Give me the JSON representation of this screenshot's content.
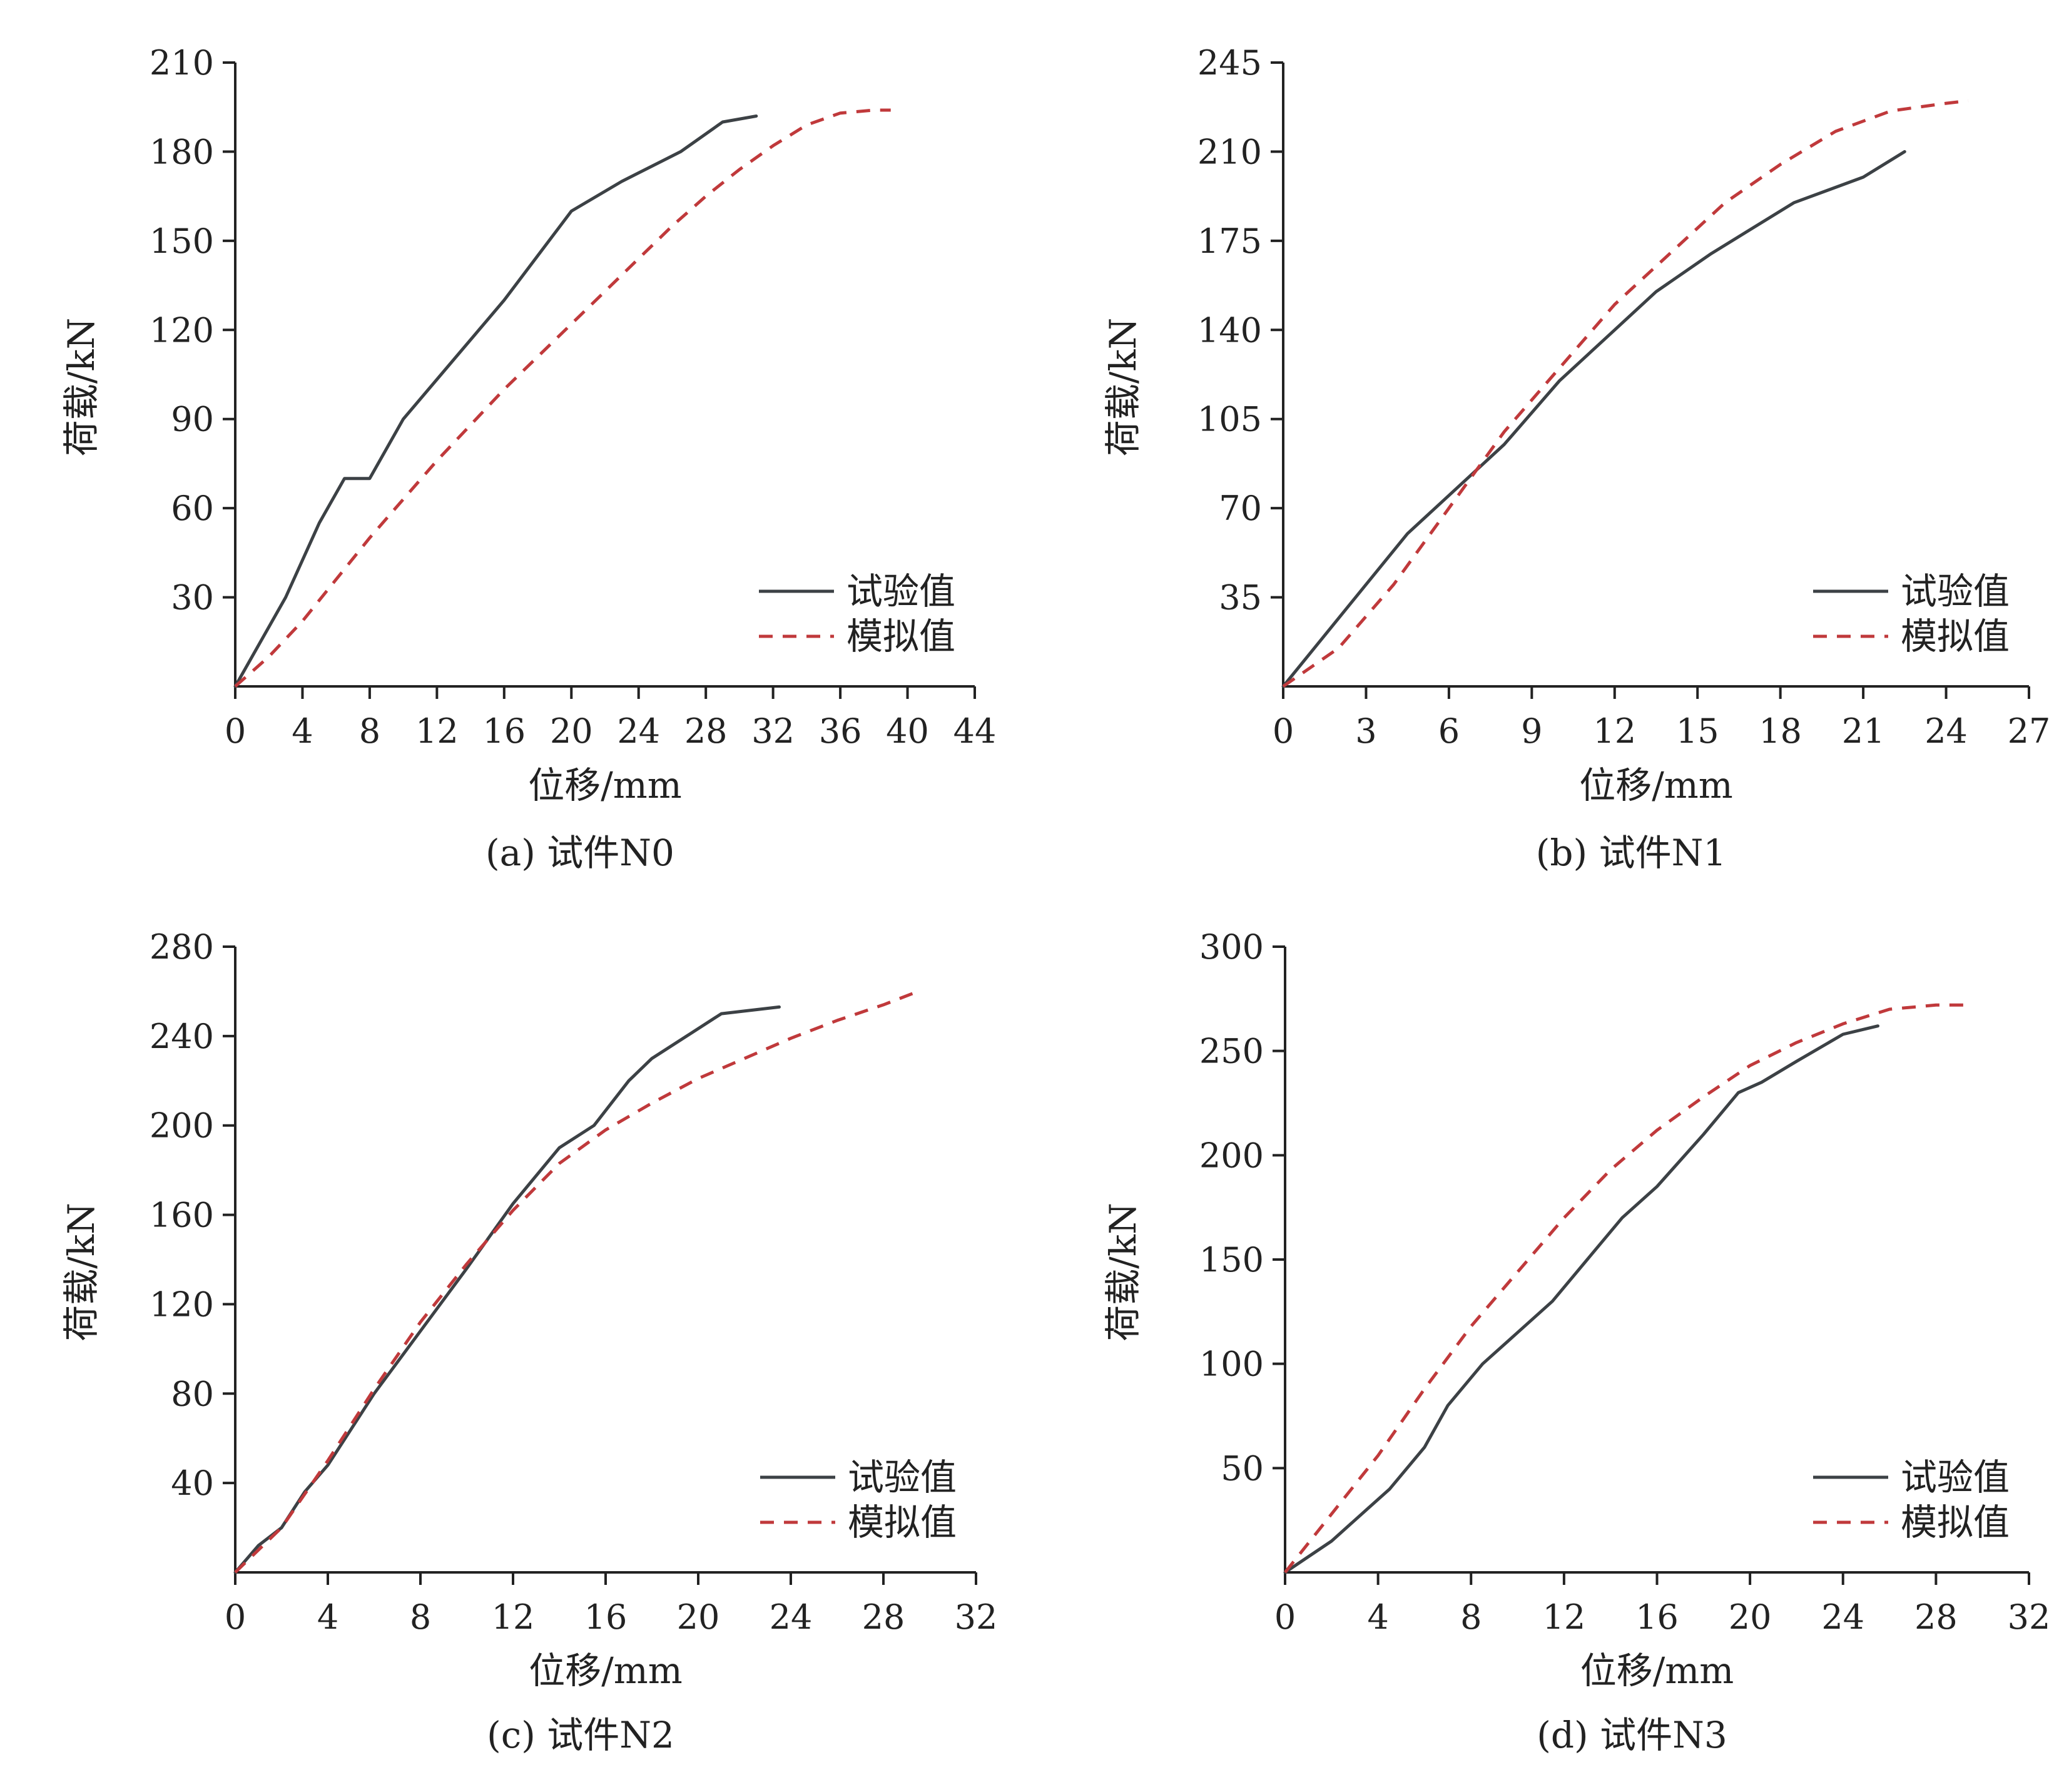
{
  "colors": {
    "experiment": "#3c4145",
    "simulation": "#c0393b",
    "axis": "#222222"
  },
  "charts": [
    {
      "caption": "(a) 试件N0",
      "chart_data": {
        "type": "line",
        "xlabel": "位移/mm",
        "ylabel": "荷载/kN",
        "xlim": [
          0,
          44
        ],
        "ylim": [
          0,
          210
        ],
        "xticks": [
          0,
          4,
          8,
          12,
          16,
          20,
          24,
          28,
          32,
          36,
          40,
          44
        ],
        "xtick_labels": [
          "0",
          "4",
          "8",
          "12",
          "16",
          "20",
          "24",
          "28",
          "32",
          "36",
          "40",
          "44"
        ],
        "yticks": [
          30,
          60,
          90,
          120,
          150,
          180,
          210
        ],
        "ytick_labels": [
          "30",
          "60",
          "90",
          "120",
          "150",
          "180",
          "210"
        ],
        "legend_position": "bottom-right",
        "series": [
          {
            "name": "试验值",
            "style": "solid",
            "color": "#3c4145",
            "x": [
              0,
              1,
              3,
              5,
              6.5,
              8,
              10,
              13,
              16,
              20,
              23,
              26.5,
              29,
              31
            ],
            "y": [
              0,
              10,
              30,
              55,
              70,
              70,
              90,
              110,
              130,
              160,
              170,
              180,
              190,
              192
            ]
          },
          {
            "name": "模拟值",
            "style": "dashed",
            "color": "#c0393b",
            "x": [
              0,
              2,
              4,
              6,
              8,
              10,
              12,
              14,
              16,
              18,
              20,
              22,
              24,
              26,
              28,
              30,
              32,
              34,
              36,
              38,
              39
            ],
            "y": [
              0,
              10,
              22,
              36,
              50,
              63,
              76,
              88,
              100,
              111,
              122,
              133,
              144,
              155,
              165,
              174,
              182,
              189,
              193,
              194,
              194
            ]
          }
        ]
      }
    },
    {
      "caption": "(b) 试件N1",
      "chart_data": {
        "type": "line",
        "xlabel": "位移/mm",
        "ylabel": "荷载/kN",
        "xlim": [
          0,
          27
        ],
        "ylim": [
          0,
          245
        ],
        "xticks": [
          0,
          3,
          6,
          9,
          12,
          15,
          18,
          21,
          24,
          27
        ],
        "xtick_labels": [
          "0",
          "3",
          "6",
          "9",
          "12",
          "15",
          "18",
          "21",
          "24",
          "27"
        ],
        "yticks": [
          35,
          70,
          105,
          140,
          175,
          210,
          245
        ],
        "ytick_labels": [
          "35",
          "70",
          "105",
          "140",
          "175",
          "210",
          "245"
        ],
        "legend_position": "bottom-right",
        "series": [
          {
            "name": "试验值",
            "style": "solid",
            "color": "#3c4145",
            "x": [
              0,
              1.5,
              3,
              4.5,
              6,
              8,
              10,
              12,
              13.5,
              15.5,
              18.5,
              21,
              22.5
            ],
            "y": [
              0,
              20,
              40,
              60,
              75,
              95,
              120,
              140,
              155,
              170,
              190,
              200,
              210
            ]
          },
          {
            "name": "模拟值",
            "style": "dashed",
            "color": "#c0393b",
            "x": [
              0,
              2,
              4,
              6,
              8,
              10,
              12,
              14,
              16,
              18,
              20,
              22,
              24,
              24.8
            ],
            "y": [
              0,
              15,
              40,
              70,
              100,
              125,
              150,
              170,
              190,
              205,
              218,
              226,
              229,
              230
            ]
          }
        ]
      }
    },
    {
      "caption": "(c) 试件N2",
      "chart_data": {
        "type": "line",
        "xlabel": "位移/mm",
        "ylabel": "荷载/kN",
        "xlim": [
          0,
          32
        ],
        "ylim": [
          0,
          280
        ],
        "xticks": [
          0,
          4,
          8,
          12,
          16,
          20,
          24,
          28,
          32
        ],
        "xtick_labels": [
          "0",
          "4",
          "8",
          "12",
          "16",
          "20",
          "24",
          "28",
          "32"
        ],
        "yticks": [
          40,
          80,
          120,
          160,
          200,
          240,
          280
        ],
        "ytick_labels": [
          "40",
          "80",
          "120",
          "160",
          "200",
          "240",
          "280"
        ],
        "legend_position": "bottom-right",
        "series": [
          {
            "name": "试验值",
            "style": "solid",
            "color": "#3c4145",
            "x": [
              0,
              1,
              2,
              3,
              4,
              6,
              8,
              10,
              12,
              14,
              15.5,
              17,
              18,
              19.5,
              21,
              23.5
            ],
            "y": [
              0,
              12,
              20,
              36,
              48,
              80,
              108,
              136,
              165,
              190,
              200,
              220,
              230,
              240,
              250,
              253
            ]
          },
          {
            "name": "模拟值",
            "style": "dashed",
            "color": "#c0393b",
            "x": [
              0,
              2,
              4,
              6,
              8,
              10,
              12,
              14,
              16,
              18,
              20,
              22,
              24,
              26,
              28,
              29.5
            ],
            "y": [
              0,
              20,
              50,
              82,
              112,
              138,
              162,
              183,
              198,
              210,
              221,
              230,
              239,
              247,
              254,
              260
            ]
          }
        ]
      }
    },
    {
      "caption": "(d) 试件N3",
      "chart_data": {
        "type": "line",
        "xlabel": "位移/mm",
        "ylabel": "荷载/kN",
        "xlim": [
          0,
          32
        ],
        "ylim": [
          0,
          300
        ],
        "xticks": [
          0,
          4,
          8,
          12,
          16,
          20,
          24,
          28,
          32
        ],
        "xtick_labels": [
          "0",
          "4",
          "8",
          "12",
          "16",
          "20",
          "24",
          "28",
          "32"
        ],
        "yticks": [
          50,
          100,
          150,
          200,
          250,
          300
        ],
        "ytick_labels": [
          "50",
          "100",
          "150",
          "200",
          "250",
          "300"
        ],
        "legend_position": "bottom-right",
        "series": [
          {
            "name": "试验值",
            "style": "solid",
            "color": "#3c4145",
            "x": [
              0,
              2,
              3.5,
              4.5,
              6,
              7,
              8.5,
              10,
              11.5,
              13,
              14.5,
              16,
              18,
              19.5,
              20.5,
              22,
              24,
              25.5
            ],
            "y": [
              0,
              15,
              30,
              40,
              60,
              80,
              100,
              115,
              130,
              150,
              170,
              185,
              210,
              230,
              235,
              245,
              258,
              262
            ]
          },
          {
            "name": "模拟值",
            "style": "dashed",
            "color": "#c0393b",
            "x": [
              0,
              2,
              4,
              6,
              8,
              10,
              12,
              14,
              16,
              18,
              20,
              22,
              24,
              26,
              28,
              29.5
            ],
            "y": [
              0,
              28,
              56,
              88,
              118,
              144,
              170,
              193,
              212,
              228,
              243,
              254,
              263,
              270,
              272,
              272
            ]
          }
        ]
      }
    }
  ]
}
